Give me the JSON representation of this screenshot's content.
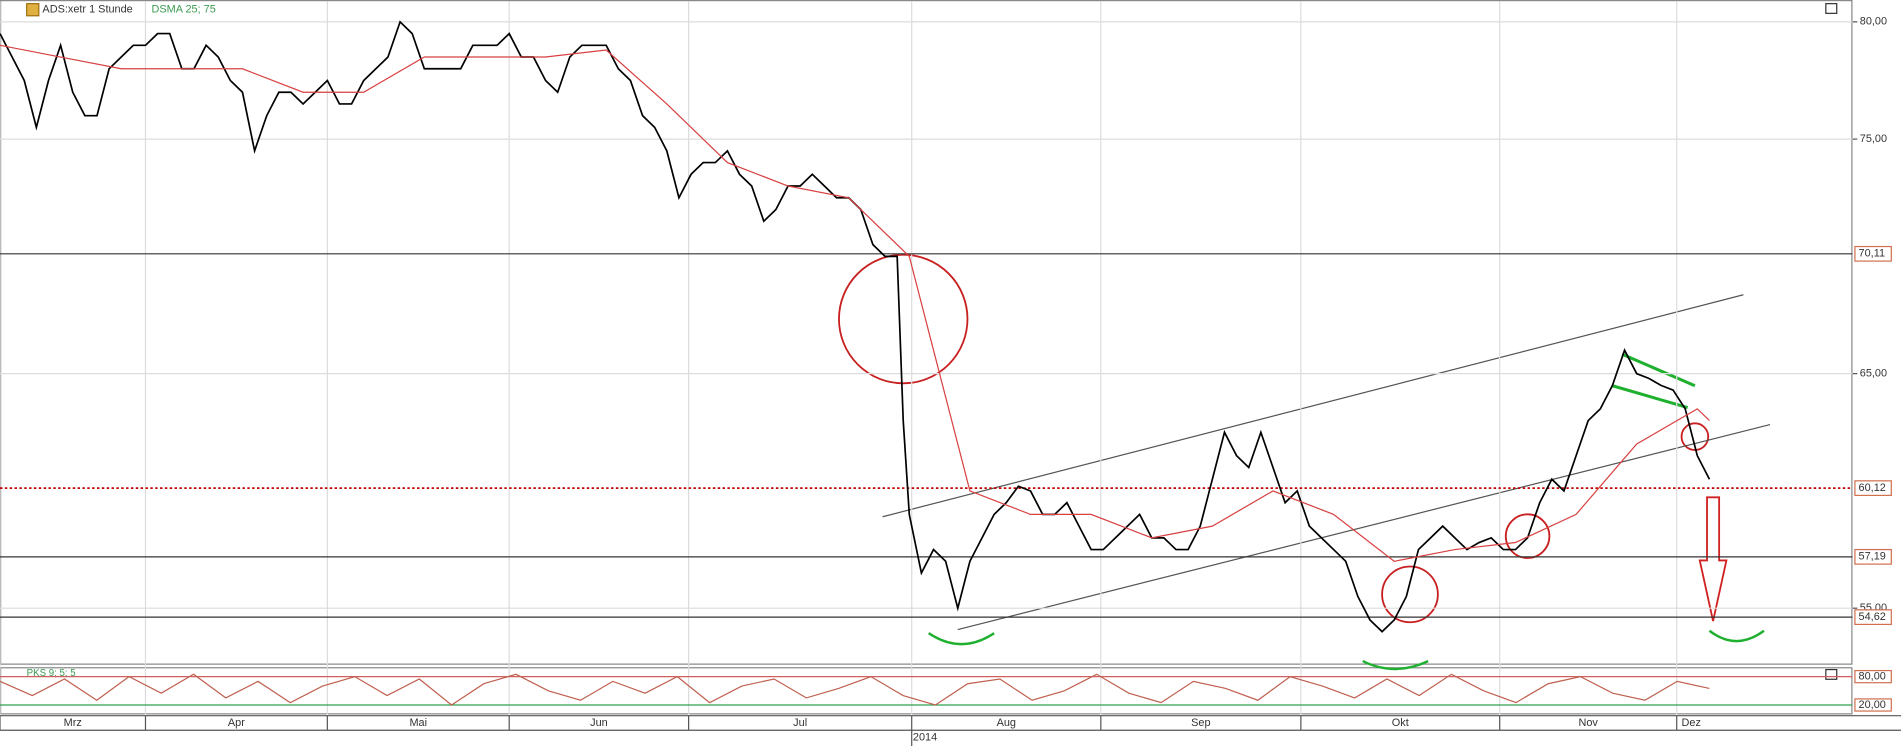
{
  "chart_data": {
    "type": "line",
    "title": "ADS:xetr 1 Stunde",
    "xlim": [
      0,
      1528
    ],
    "ylim": [
      52.59,
      80.88
    ],
    "yticks": [
      {
        "value": 80,
        "label": "80,00"
      },
      {
        "value": 75,
        "label": "75,00"
      },
      {
        "value": 65,
        "label": "65,00"
      },
      {
        "value": 55,
        "label": "55,00"
      }
    ],
    "xticks": [
      {
        "value": 0,
        "label": "Mrz"
      },
      {
        "value": 120,
        "label": "Apr"
      },
      {
        "value": 270,
        "label": "Mai"
      },
      {
        "value": 420,
        "label": "Jun"
      },
      {
        "value": 568,
        "label": "Jul"
      },
      {
        "value": 752,
        "label": "Aug"
      },
      {
        "value": 908,
        "label": "Sep"
      },
      {
        "value": 1073,
        "label": "Okt"
      },
      {
        "value": 1237,
        "label": "Nov"
      },
      {
        "value": 1383,
        "label": "Dez"
      }
    ],
    "year_ticks": [
      {
        "value": 752,
        "label": "2014"
      }
    ],
    "levels": [
      {
        "value": 70.11,
        "label": "70,11",
        "color": "#333333",
        "dashed": false
      },
      {
        "value": 60.12,
        "label": "60,12",
        "color": "#c00000",
        "dashed": true
      },
      {
        "value": 57.19,
        "label": "57,19",
        "color": "#333333",
        "dashed": false
      },
      {
        "value": 54.62,
        "label": "54,62",
        "color": "#333333",
        "dashed": false
      }
    ],
    "series": [
      {
        "color": "#000000",
        "x": [
          0,
          10,
          20,
          30,
          40,
          50,
          60,
          70,
          80,
          90,
          100,
          110,
          120,
          130,
          140,
          150,
          160,
          170,
          180,
          190,
          200,
          210,
          220,
          230,
          240,
          250,
          260,
          270,
          280,
          290,
          300,
          310,
          320,
          330,
          340,
          350,
          360,
          370,
          380,
          390,
          400,
          410,
          420,
          430,
          440,
          450,
          460,
          470,
          480,
          490,
          500,
          510,
          520,
          530,
          540,
          550,
          560,
          570,
          580,
          590,
          600,
          610,
          620,
          630,
          640,
          650,
          660,
          670,
          680,
          690,
          700,
          710,
          720,
          730,
          740,
          745,
          750,
          760,
          770,
          780,
          790,
          800,
          810,
          820,
          830,
          840,
          850,
          860,
          870,
          880,
          890,
          900,
          910,
          920,
          930,
          940,
          950,
          960,
          970,
          980,
          990,
          1000,
          1010,
          1020,
          1030,
          1040,
          1050,
          1060,
          1070,
          1080,
          1090,
          1100,
          1110,
          1120,
          1130,
          1140,
          1150,
          1160,
          1170,
          1180,
          1190,
          1200,
          1210,
          1220,
          1230,
          1240,
          1250,
          1260,
          1270,
          1280,
          1290,
          1300,
          1310,
          1320,
          1330,
          1340,
          1350,
          1360,
          1370,
          1380,
          1390,
          1400,
          1410
        ],
        "values": [
          79.5,
          78.5,
          77.5,
          75.5,
          77.5,
          79,
          77,
          76,
          76,
          78,
          78.5,
          79,
          79,
          79.5,
          79.5,
          78,
          78,
          79,
          78.5,
          77.5,
          77,
          74.5,
          76,
          77,
          77,
          76.5,
          77,
          77.5,
          76.5,
          76.5,
          77.5,
          78,
          78.5,
          80,
          79.5,
          78,
          78,
          78,
          78,
          79,
          79,
          79,
          79.5,
          78.5,
          78.5,
          77.5,
          77,
          78.5,
          79,
          79,
          79,
          78,
          77.5,
          76,
          75.5,
          74.5,
          72.5,
          73.5,
          74,
          74,
          74.5,
          73.5,
          73,
          71.5,
          72,
          73,
          73,
          73.5,
          73,
          72.5,
          72.5,
          72,
          70.5,
          70,
          70,
          63,
          59,
          56.5,
          57.5,
          57,
          55,
          57,
          58,
          59,
          59.5,
          60.2,
          60,
          59,
          59,
          59.5,
          58.5,
          57.5,
          57.5,
          58,
          58.5,
          59,
          58,
          58,
          57.5,
          57.5,
          58.5,
          60.5,
          62.5,
          61.5,
          61,
          62.5,
          61,
          59.5,
          60,
          58.5,
          58,
          57.5,
          57,
          55.5,
          54.5,
          54,
          54.5,
          55.5,
          57.5,
          58,
          58.5,
          58,
          57.5,
          57.8,
          58,
          57.5,
          57.5,
          58,
          59.5,
          60.5,
          60,
          61.5,
          63,
          63.5,
          64.5,
          66,
          65,
          64.8,
          64.5,
          64.3,
          63.5,
          61.5,
          60.5
        ]
      },
      {
        "name": "DSMA 25; 75",
        "color": "#d84040",
        "x": [
          0,
          50,
          100,
          150,
          200,
          250,
          300,
          350,
          400,
          450,
          500,
          550,
          600,
          650,
          700,
          750,
          770,
          800,
          850,
          900,
          950,
          1000,
          1050,
          1100,
          1150,
          1200,
          1250,
          1300,
          1350,
          1400,
          1410
        ],
        "values": [
          79,
          78.5,
          78,
          78,
          78,
          77,
          77,
          78.5,
          78.5,
          78.5,
          78.8,
          76.5,
          74,
          73,
          72.5,
          70,
          66,
          60,
          59,
          59,
          58,
          58.5,
          60,
          59,
          57,
          57.5,
          57.8,
          59,
          62,
          63.5,
          63
        ]
      }
    ],
    "oscillator": {
      "title": "PKS 9; 5; 5",
      "color": "#c06050",
      "ylim": [
        2.5,
        97.5
      ],
      "yticks": [
        {
          "value": 80,
          "label": "80,00"
        },
        {
          "value": 20,
          "label": "20,00"
        }
      ],
      "values": [
        70,
        40,
        75,
        30,
        80,
        45,
        85,
        35,
        70,
        25,
        60,
        80,
        40,
        75,
        20,
        65,
        85,
        50,
        30,
        70,
        45,
        80,
        25,
        60,
        75,
        35,
        55,
        80,
        40,
        20,
        65,
        75,
        30,
        50,
        85,
        45,
        25,
        70,
        55,
        30,
        80,
        60,
        35,
        75,
        40,
        85,
        50,
        25,
        65,
        80,
        45,
        30,
        70,
        55
      ]
    }
  }
}
